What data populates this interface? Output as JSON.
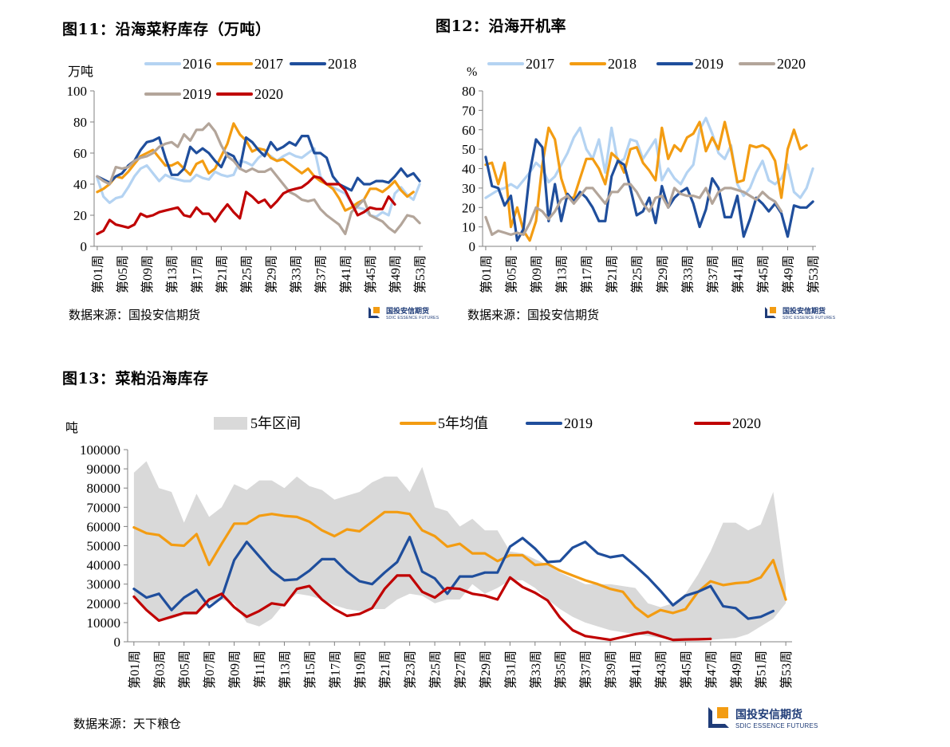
{
  "figures": {
    "fig11": {
      "title": "图11：沿海菜籽库存（万吨）",
      "source": "数据来源：国投安信期货"
    },
    "fig12": {
      "title": "图12：沿海开机率",
      "source": "数据来源：国投安信期货"
    },
    "fig13": {
      "title": "图13：菜粕沿海库存",
      "source": "数据来源：天下粮仓"
    }
  },
  "logo": {
    "name": "国投安信期货",
    "english": "SDIC ESSENCE FUTURES"
  },
  "colors": {
    "light_blue": "#b4d3f2",
    "orange": "#f39c12",
    "dark_blue": "#1f4e9c",
    "taupe": "#b3a59a",
    "red": "#c00000",
    "band_gray": "#d9d9d9",
    "axis": "#808080"
  },
  "chart_data": [
    {
      "id": "fig11",
      "type": "line",
      "ylabel": "万吨",
      "ylim": [
        0,
        100
      ],
      "yticks": [
        0,
        20,
        40,
        60,
        80,
        100
      ],
      "x_tick_labels": [
        "第01周",
        "第05周",
        "第09周",
        "第13周",
        "第17周",
        "第21周",
        "第25周",
        "第29周",
        "第33周",
        "第37周",
        "第41周",
        "第45周",
        "第49周",
        "第53周"
      ],
      "x_tick_weeks": [
        1,
        5,
        9,
        13,
        17,
        21,
        25,
        29,
        33,
        37,
        41,
        45,
        49,
        53
      ],
      "week_count": 53,
      "legend_position": "top",
      "series": [
        {
          "name": "2016",
          "color": "#b4d3f2",
          "values": [
            44,
            32,
            28,
            31,
            32,
            38,
            45,
            50,
            52,
            47,
            42,
            46,
            44,
            43,
            42,
            42,
            46,
            44,
            43,
            48,
            46,
            45,
            46,
            55,
            54,
            52,
            57,
            60,
            58,
            55,
            58,
            60,
            58,
            57,
            60,
            63,
            45,
            40,
            38,
            36,
            34,
            28,
            25,
            24,
            20,
            19,
            22,
            20,
            34,
            38,
            33,
            30,
            40
          ]
        },
        {
          "name": "2017",
          "color": "#f39c12",
          "values": [
            35,
            37,
            40,
            45,
            44,
            48,
            53,
            58,
            60,
            62,
            57,
            52,
            52,
            54,
            50,
            46,
            53,
            55,
            47,
            50,
            58,
            66,
            79,
            72,
            68,
            61,
            63,
            62,
            57,
            55,
            56,
            53,
            50,
            47,
            50,
            45,
            42,
            40,
            37,
            31,
            23,
            25,
            28,
            30,
            37,
            37,
            35,
            38,
            42,
            36,
            32,
            35,
            null
          ]
        },
        {
          "name": "2018",
          "color": "#1f4e9c",
          "values": [
            45,
            43,
            41,
            45,
            47,
            52,
            55,
            62,
            67,
            68,
            70,
            57,
            46,
            46,
            50,
            64,
            60,
            63,
            60,
            55,
            51,
            60,
            58,
            50,
            70,
            67,
            62,
            58,
            67,
            62,
            64,
            67,
            65,
            71,
            71,
            60,
            60,
            57,
            45,
            40,
            38,
            36,
            44,
            40,
            40,
            42,
            42,
            41,
            45,
            50,
            45,
            47,
            42
          ]
        },
        {
          "name": "2019",
          "color": "#b3a59a",
          "values": [
            45,
            42,
            40,
            51,
            50,
            51,
            55,
            57,
            58,
            60,
            64,
            66,
            67,
            64,
            72,
            68,
            75,
            75,
            79,
            74,
            65,
            58,
            55,
            50,
            48,
            50,
            48,
            48,
            50,
            45,
            40,
            35,
            33,
            30,
            29,
            30,
            24,
            20,
            17,
            14,
            8,
            22,
            26,
            30,
            20,
            18,
            16,
            12,
            9,
            14,
            20,
            19,
            15
          ]
        },
        {
          "name": "2020",
          "color": "#c00000",
          "values": [
            8,
            10,
            17,
            14,
            13,
            12,
            14,
            21,
            19,
            20,
            22,
            23,
            24,
            25,
            20,
            19,
            25,
            21,
            21,
            16,
            22,
            27,
            22,
            18,
            35,
            32,
            28,
            30,
            25,
            29,
            34,
            36,
            37,
            38,
            41,
            45,
            44,
            40,
            40,
            40,
            36,
            28,
            20,
            22,
            25,
            24,
            24,
            32,
            27,
            null,
            null,
            null,
            null
          ]
        }
      ]
    },
    {
      "id": "fig12",
      "type": "line",
      "ylabel": "%",
      "ylim": [
        0,
        80
      ],
      "yticks": [
        0,
        10,
        20,
        30,
        40,
        50,
        60,
        70,
        80
      ],
      "x_tick_labels": [
        "第01周",
        "第05周",
        "第09周",
        "第13周",
        "第17周",
        "第21周",
        "第25周",
        "第29周",
        "第33周",
        "第37周",
        "第41周",
        "第45周",
        "第49周",
        "第53周"
      ],
      "x_tick_weeks": [
        1,
        5,
        9,
        13,
        17,
        21,
        25,
        29,
        33,
        37,
        41,
        45,
        49,
        53
      ],
      "week_count": 53,
      "legend_position": "top",
      "series": [
        {
          "name": "2017",
          "color": "#b4d3f2",
          "values": [
            25,
            27,
            29,
            30,
            32,
            30,
            34,
            38,
            43,
            40,
            33,
            36,
            42,
            48,
            56,
            61,
            50,
            45,
            55,
            38,
            61,
            43,
            45,
            55,
            54,
            45,
            50,
            55,
            34,
            40,
            35,
            32,
            38,
            42,
            60,
            66,
            58,
            48,
            45,
            52,
            32,
            26,
            30,
            38,
            44,
            34,
            32,
            35,
            42,
            28,
            25,
            30,
            40
          ]
        },
        {
          "name": "2018",
          "color": "#f39c12",
          "values": [
            42,
            43,
            32,
            43,
            10,
            20,
            8,
            3,
            13,
            42,
            61,
            55,
            35,
            25,
            25,
            35,
            45,
            45,
            40,
            32,
            48,
            45,
            38,
            50,
            51,
            43,
            39,
            34,
            61,
            45,
            52,
            49,
            56,
            58,
            64,
            49,
            56,
            50,
            64,
            50,
            33,
            34,
            52,
            51,
            52,
            50,
            44,
            25,
            50,
            60,
            50,
            52,
            null
          ]
        },
        {
          "name": "2019",
          "color": "#1f4e9c",
          "values": [
            46,
            31,
            30,
            21,
            26,
            3,
            9,
            38,
            55,
            51,
            13,
            32,
            13,
            27,
            23,
            28,
            25,
            20,
            13,
            13,
            36,
            44,
            42,
            30,
            16,
            18,
            25,
            12,
            31,
            20,
            25,
            28,
            30,
            22,
            10,
            19,
            35,
            30,
            15,
            15,
            26,
            5,
            14,
            25,
            22,
            18,
            22,
            17,
            5,
            21,
            20,
            20,
            23
          ]
        },
        {
          "name": "2020",
          "color": "#b3a59a",
          "values": [
            15,
            6,
            8,
            7,
            6,
            7,
            6,
            12,
            20,
            18,
            14,
            18,
            24,
            26,
            22,
            26,
            30,
            30,
            26,
            22,
            28,
            28,
            32,
            32,
            28,
            22,
            18,
            25,
            26,
            20,
            30,
            27,
            26,
            26,
            25,
            30,
            22,
            28,
            30,
            30,
            29,
            28,
            26,
            24,
            28,
            25,
            23,
            18,
            null,
            null,
            null,
            null,
            null
          ]
        }
      ]
    },
    {
      "id": "fig13",
      "type": "area",
      "ylabel": "吨",
      "ylim": [
        0,
        100000
      ],
      "yticks": [
        0,
        10000,
        20000,
        30000,
        40000,
        50000,
        60000,
        70000,
        80000,
        90000,
        100000
      ],
      "x_tick_labels": [
        "第01周",
        "第03周",
        "第05周",
        "第07周",
        "第09周",
        "第11周",
        "第13周",
        "第15周",
        "第17周",
        "第19周",
        "第21周",
        "第23周",
        "第25周",
        "第27周",
        "第29周",
        "第31周",
        "第33周",
        "第35周",
        "第37周",
        "第39周",
        "第41周",
        "第43周",
        "第45周",
        "第47周",
        "第49周",
        "第51周",
        "第53周"
      ],
      "x_tick_weeks": [
        1,
        3,
        5,
        7,
        9,
        11,
        13,
        15,
        17,
        19,
        21,
        23,
        25,
        27,
        29,
        31,
        33,
        35,
        37,
        39,
        41,
        43,
        45,
        47,
        49,
        51,
        53
      ],
      "week_count": 53,
      "legend_position": "top",
      "band": {
        "name": "5年区间",
        "color": "#d9d9d9",
        "upper": [
          88000,
          94000,
          80000,
          78000,
          62000,
          77000,
          65000,
          70000,
          82000,
          79000,
          84000,
          84000,
          80000,
          86000,
          81000,
          79000,
          74000,
          76000,
          78000,
          83000,
          86000,
          86000,
          78000,
          91000,
          70000,
          68000,
          60000,
          64000,
          58000,
          58000,
          47000,
          46000,
          43000,
          40000,
          36000,
          33000,
          30000,
          30000,
          30000,
          29000,
          28000,
          20000,
          18000,
          20000,
          25000,
          35000,
          47000,
          62000,
          62000,
          58000,
          61000,
          78000,
          30000
        ],
        "lower": [
          24000,
          17000,
          11000,
          12000,
          14000,
          14000,
          20000,
          22000,
          20000,
          10000,
          8000,
          12000,
          20000,
          25000,
          24000,
          22000,
          19000,
          17000,
          16000,
          17000,
          17000,
          22000,
          25000,
          24000,
          20000,
          22000,
          22000,
          30000,
          25000,
          28000,
          32000,
          32000,
          28000,
          22000,
          17000,
          13000,
          10000,
          8000,
          6000,
          5000,
          4000,
          3000,
          2000,
          1500,
          1200,
          1000,
          1000,
          1500,
          2000,
          4000,
          8000,
          12000,
          20000
        ]
      },
      "series": [
        {
          "name": "5年均值",
          "color": "#f39c12",
          "values": [
            59500,
            56500,
            55500,
            50500,
            50000,
            56000,
            40000,
            51000,
            61500,
            61500,
            65500,
            66500,
            65500,
            65000,
            62500,
            58000,
            55000,
            58500,
            57500,
            62500,
            67500,
            67500,
            66500,
            58000,
            55000,
            49500,
            51000,
            46000,
            46000,
            42000,
            45000,
            45000,
            40000,
            40500,
            37000,
            34500,
            32000,
            30000,
            27500,
            26000,
            18000,
            13000,
            16500,
            15000,
            17000,
            26000,
            31500,
            29500,
            30500,
            31000,
            33500,
            42500,
            22000
          ]
        },
        {
          "name": "2019",
          "color": "#1f4e9c",
          "values": [
            27500,
            23000,
            25000,
            16500,
            23000,
            27000,
            18000,
            23000,
            42500,
            52000,
            44500,
            37000,
            32000,
            32500,
            37000,
            43000,
            43000,
            36500,
            31500,
            30000,
            36000,
            41500,
            54500,
            36500,
            33000,
            25000,
            34000,
            34000,
            36000,
            36000,
            49500,
            54000,
            48500,
            41500,
            42000,
            49000,
            52000,
            46000,
            44000,
            45000,
            39500,
            33500,
            26500,
            19000,
            24000,
            26000,
            29000,
            18500,
            17500,
            12000,
            13000,
            16000,
            null
          ]
        },
        {
          "name": "2020",
          "color": "#c00000",
          "values": [
            23500,
            16500,
            11000,
            13000,
            15000,
            15000,
            22000,
            25000,
            18000,
            13000,
            16000,
            20000,
            19000,
            27500,
            29000,
            22000,
            17000,
            13500,
            14500,
            17500,
            27500,
            34500,
            34500,
            26000,
            23000,
            28000,
            27500,
            25000,
            24000,
            22000,
            33500,
            28500,
            25500,
            21500,
            12500,
            6000,
            3000,
            2000,
            1000,
            2500,
            4000,
            5000,
            3000,
            1000,
            1200,
            1300,
            1500,
            null,
            null,
            null,
            null,
            null,
            null
          ]
        }
      ]
    }
  ],
  "legends": {
    "fig11_row1": [
      "2016",
      "2017",
      "2018"
    ],
    "fig11_row2": [
      "2019",
      "2020"
    ],
    "fig12_row": [
      "2017",
      "2018",
      "2019",
      "2020"
    ],
    "fig13_row": [
      "5年区间",
      "5年均值",
      "2019",
      "2020"
    ]
  }
}
